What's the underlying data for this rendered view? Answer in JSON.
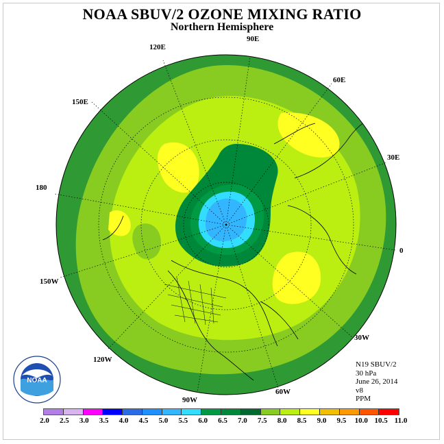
{
  "header": {
    "title": "NOAA SBUV/2 OZONE MIXING RATIO",
    "subtitle": "Northern Hemisphere"
  },
  "longitude_labels": {
    "e90": "90E",
    "e120": "120E",
    "e60": "60E",
    "e150": "150E",
    "e30": "30E",
    "d180": "180",
    "d0": "0",
    "w150": "150W",
    "w30": "30W",
    "w120": "120W",
    "w60": "60W",
    "w90": "90W"
  },
  "info": {
    "instrument": "N19 SBUV/2",
    "level": "30 hPa",
    "date": "June 26, 2014",
    "version": "v8",
    "units": "PPM"
  },
  "logo": {
    "name": "NOAA",
    "ring_text": "NATIONAL OCEANIC AND ATMOSPHERIC ADMINISTRATION · U.S. DEPARTMENT OF COMMERCE"
  },
  "colorbar": {
    "ticks": [
      "2.0",
      "2.5",
      "3.0",
      "3.5",
      "4.0",
      "4.5",
      "5.0",
      "5.5",
      "6.0",
      "6.5",
      "7.0",
      "7.5",
      "8.0",
      "8.5",
      "9.0",
      "9.5",
      "10.0",
      "10.5",
      "11.0"
    ],
    "colors": [
      "#b27fe6",
      "#d9b3f0",
      "#ff00ff",
      "#0000ff",
      "#2b6be6",
      "#1e90ff",
      "#33b5ff",
      "#33ddff",
      "#009944",
      "#00883a",
      "#006a30",
      "#88cc22",
      "#bbee11",
      "#ffff22",
      "#f0c000",
      "#ff9900",
      "#ff5500",
      "#ff0000",
      "#8b4c2e"
    ]
  },
  "map_colors": {
    "level_6_5_to_7": "#00883a",
    "level_7_to_7_5": "#3aa02a",
    "level_7_5_to_8": "#88cc22",
    "level_8_to_8_5": "#bbee11",
    "level_8_5_to_9": "#ffff22",
    "level_6_to_6_5": "#008a3a",
    "level_5_5_to_6": "#33ddff",
    "level_5_to_5_5": "#33b5ff"
  }
}
